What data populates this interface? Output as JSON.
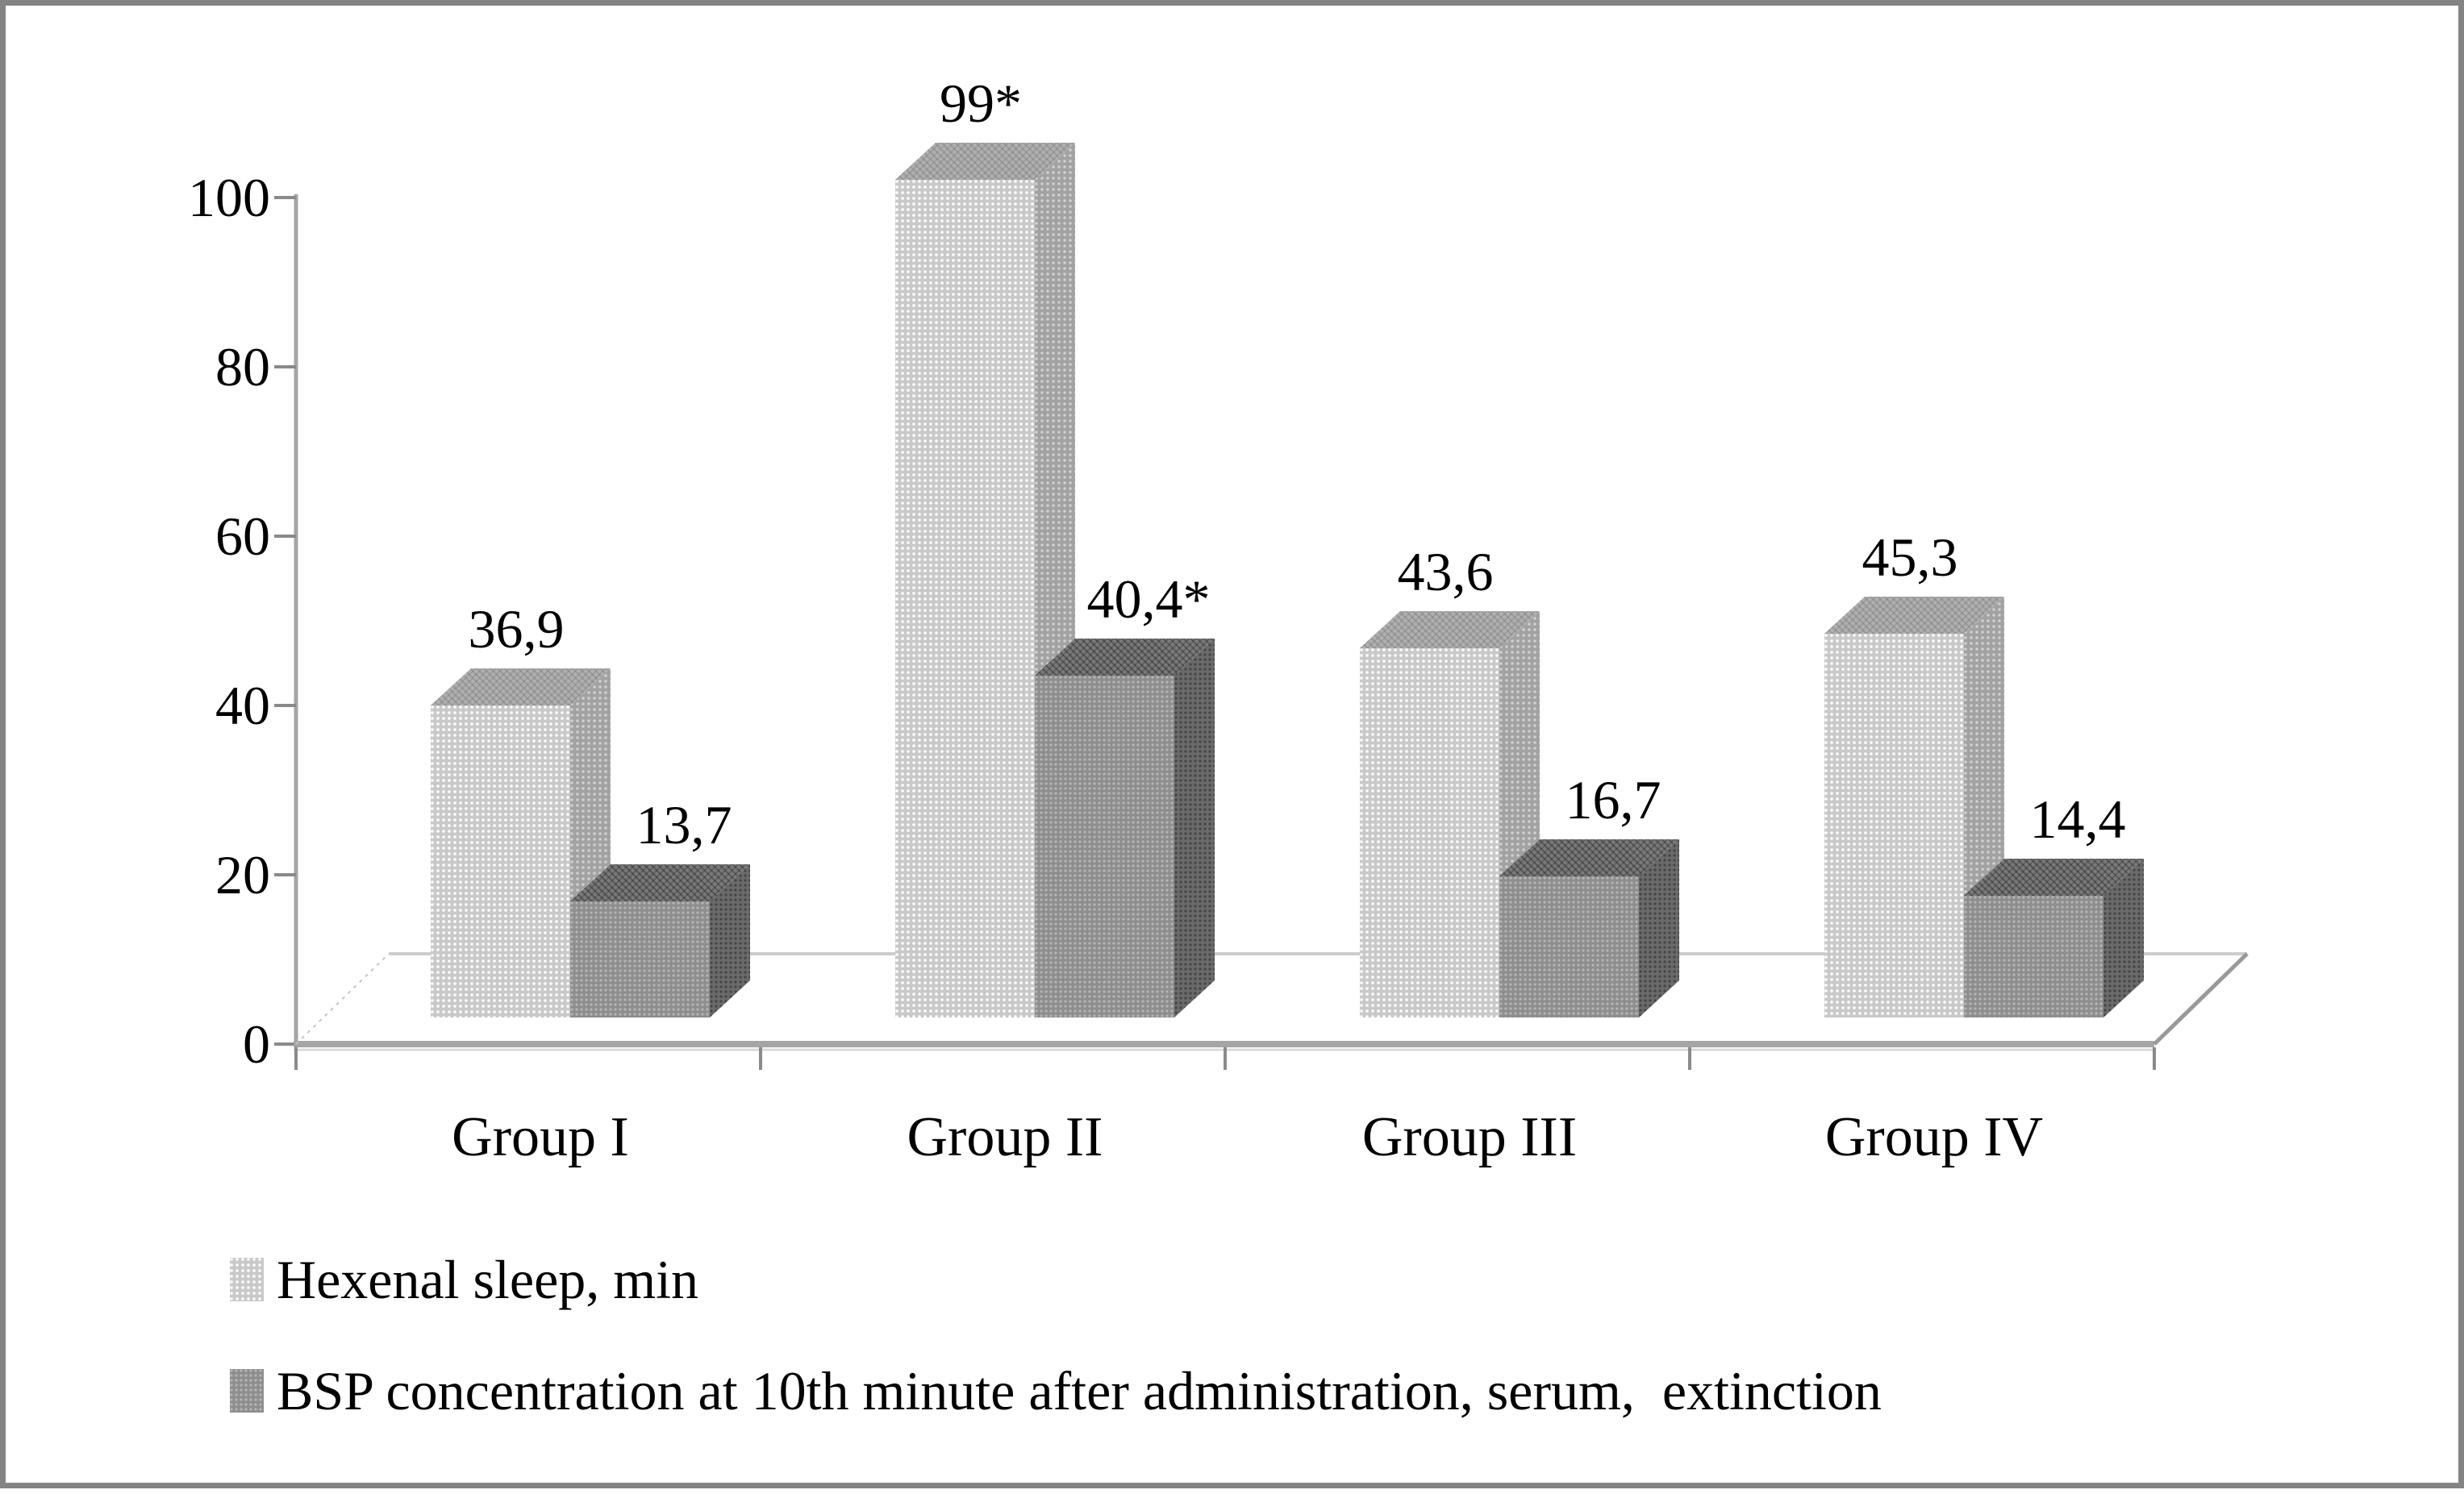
{
  "chart_data": {
    "type": "bar",
    "style": "3d-column",
    "title": "",
    "xlabel": "",
    "ylabel": "",
    "categories": [
      "Group I",
      "Group II",
      "Group III",
      "Group IV"
    ],
    "series": [
      {
        "name": "Hexenal sleep, min",
        "values": [
          36.9,
          99,
          43.6,
          45.3
        ],
        "value_labels": [
          "36,9",
          "99*",
          "43,6",
          "45,3"
        ],
        "color": "#c9c9c9"
      },
      {
        "name": "BSP concentration at 10th minute after administration, serum,  extinction",
        "values": [
          13.7,
          40.4,
          16.7,
          14.4
        ],
        "value_labels": [
          "13,7",
          "40,4*",
          "16,7",
          "14,4"
        ],
        "color": "#8e8e8e"
      }
    ],
    "ylim": [
      0,
      100
    ],
    "y_ticks": [
      0,
      20,
      40,
      60,
      80,
      100
    ],
    "grid": false,
    "legend_position": "bottom-left"
  },
  "colors": {
    "background": "#ffffff",
    "border": "#848484",
    "axis": "#a5a5a5",
    "tick": "#8a8a8a",
    "baseline_echo": "#d8d8d8",
    "floor_back": "#cccccc",
    "floor_dashed": "#c4c4c4",
    "text": "#000000",
    "light_front": "#c9c9c9",
    "light_top": "#b0b0b0",
    "light_side": "#a2a2a2",
    "dark_front": "#8e8e8e",
    "dark_top": "#7a7a7a",
    "dark_side": "#6a6a6a"
  }
}
